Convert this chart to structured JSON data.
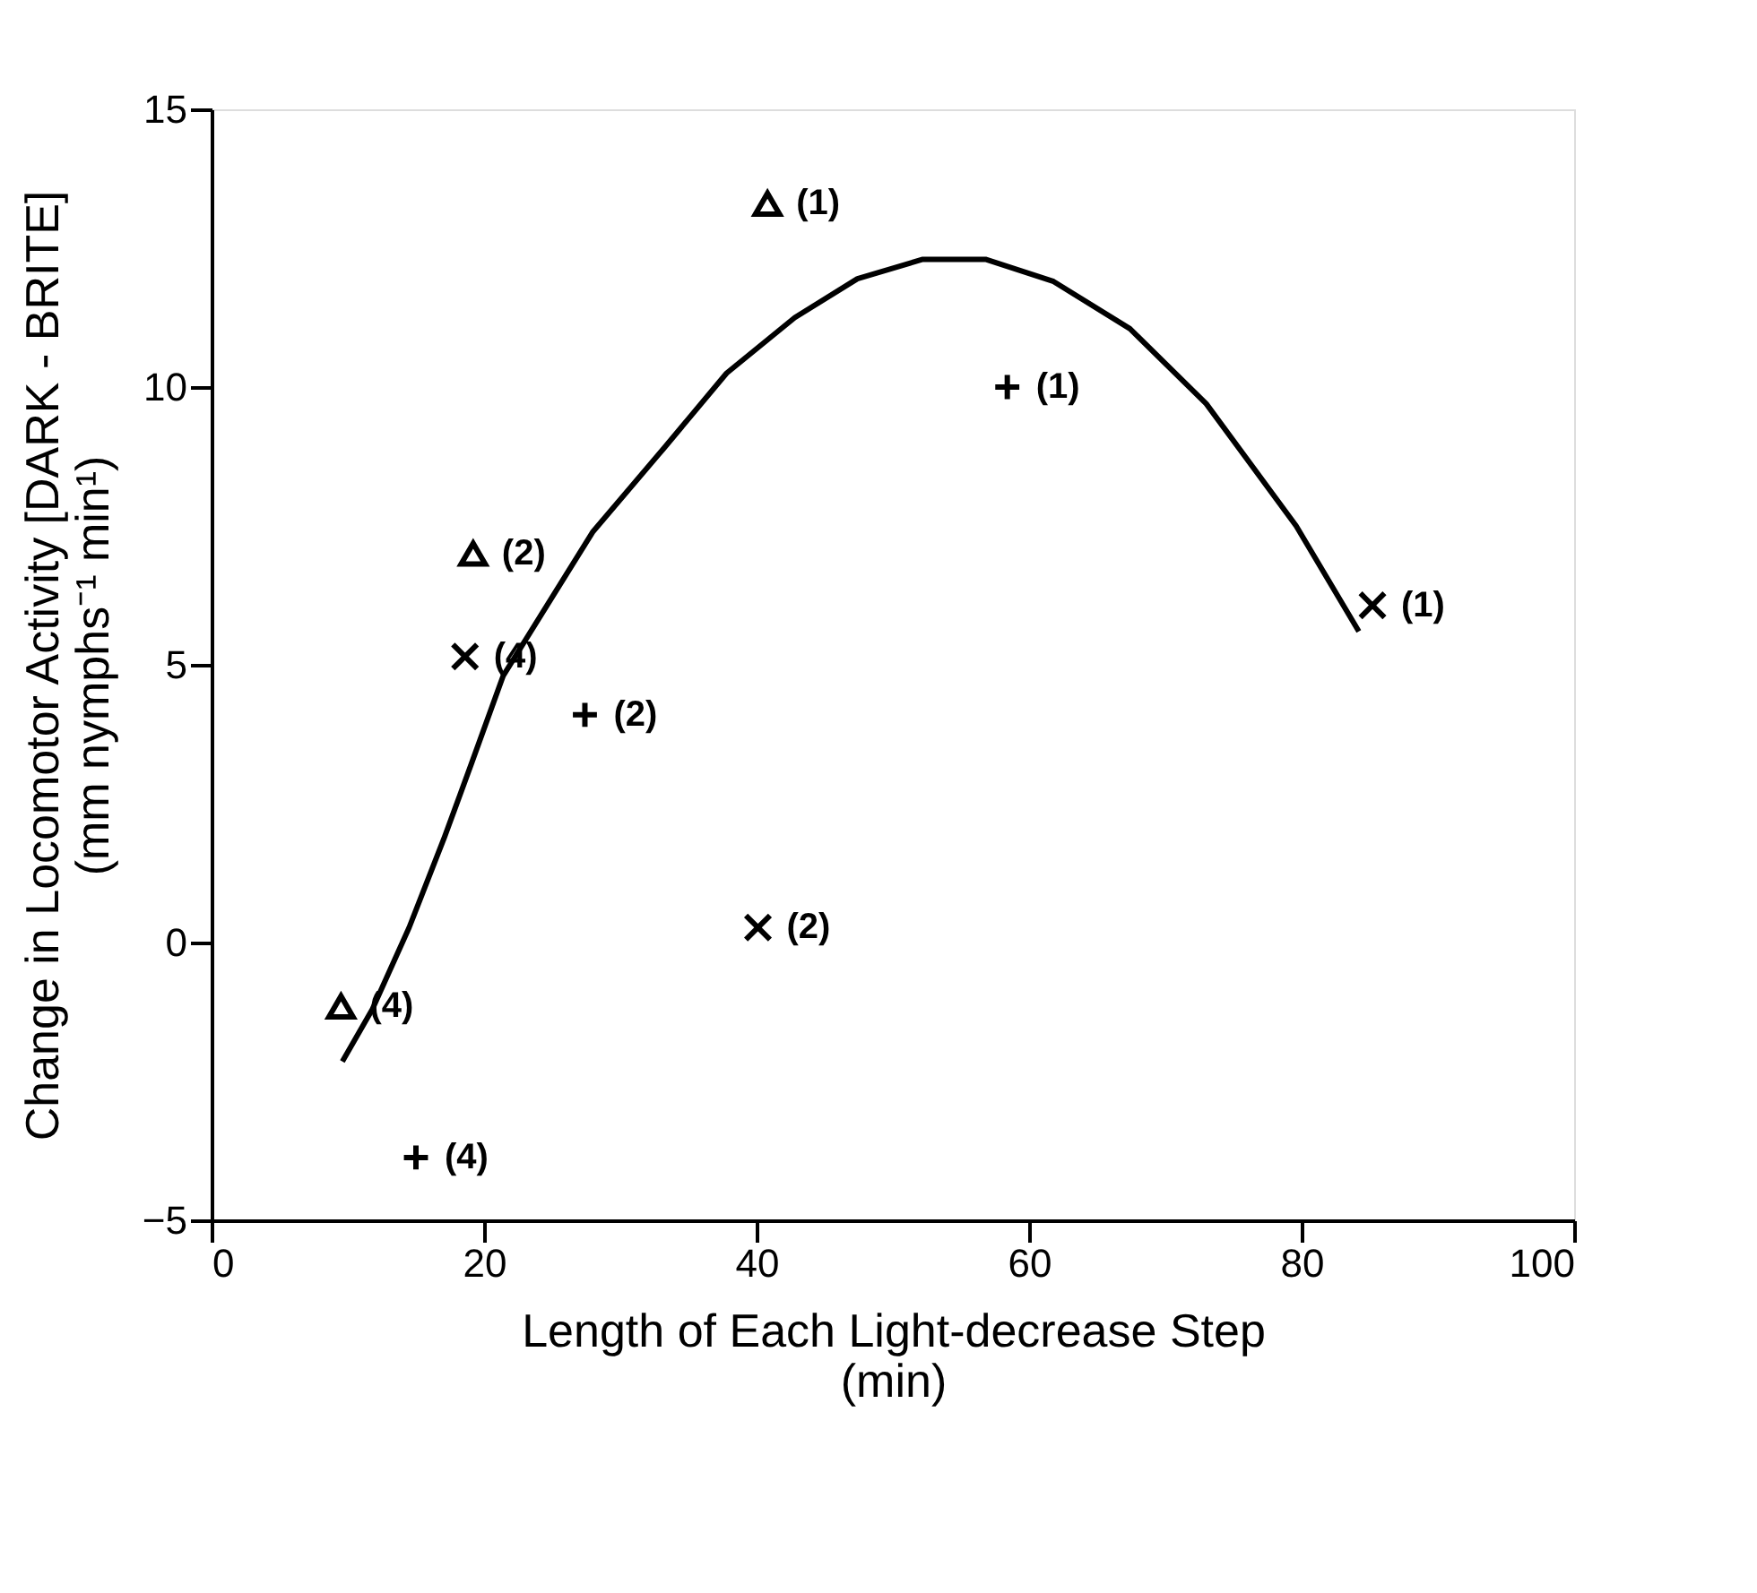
{
  "chart_data": {
    "type": "scatter",
    "xlabel": "Length of Each Light-decrease Step\n(min)",
    "ylabel": "Change in Locomotor Activity [DARK - BRITE]\n(mm nymphs⁻¹ min¹)",
    "xlim": [
      0,
      100
    ],
    "xticks": [
      0,
      20,
      40,
      60,
      80,
      100
    ],
    "ylim": [
      -5,
      15
    ],
    "yticks": [
      -5,
      0,
      5,
      10,
      15
    ],
    "grid": false,
    "series": [
      {
        "marker": "triangle",
        "color": "#000000",
        "x": [
          40.8,
          19.2,
          9.5
        ],
        "values": [
          13.3,
          7.0,
          -1.15
        ]
      },
      {
        "marker": "cross",
        "color": "#000000",
        "x": [
          58.4,
          27.4,
          15.0
        ],
        "values": [
          10.0,
          4.1,
          -3.87
        ]
      },
      {
        "marker": "x",
        "color": "#000000",
        "x": [
          85.2,
          18.6,
          40.1
        ],
        "values": [
          6.07,
          5.15,
          0.27
        ]
      },
      {
        "type": "line",
        "line_style": "solid",
        "color": "#000000",
        "x": [
          9.6,
          11.8,
          14.5,
          17.1,
          19.1,
          21.4,
          28,
          33.2,
          37.8,
          42.8,
          47.4,
          52.2,
          56.8,
          61.8,
          67.4,
          73,
          79.6,
          84.2
        ],
        "values": [
          -2.14,
          -1.2,
          0.27,
          1.9,
          3.24,
          4.8,
          7.4,
          8.9,
          10.25,
          11.25,
          11.95,
          12.3,
          12.3,
          11.9,
          11.05,
          9.7,
          7.5,
          5.6
        ]
      }
    ],
    "annotations": [
      {
        "text": "(1)",
        "x": 40.8,
        "y": 13.3
      },
      {
        "text": "(1)",
        "x": 58.4,
        "y": 10.0
      },
      {
        "text": "(2)",
        "x": 19.2,
        "y": 7.0
      },
      {
        "text": "(4)",
        "x": 18.6,
        "y": 5.15
      },
      {
        "text": "(1)",
        "x": 85.2,
        "y": 6.07
      },
      {
        "text": "(2)",
        "x": 27.4,
        "y": 4.1
      },
      {
        "text": "(2)",
        "x": 40.1,
        "y": 0.27
      },
      {
        "text": "(4)",
        "x": 9.5,
        "y": -1.15
      },
      {
        "text": "(4)",
        "x": 15.0,
        "y": -3.87
      }
    ]
  }
}
